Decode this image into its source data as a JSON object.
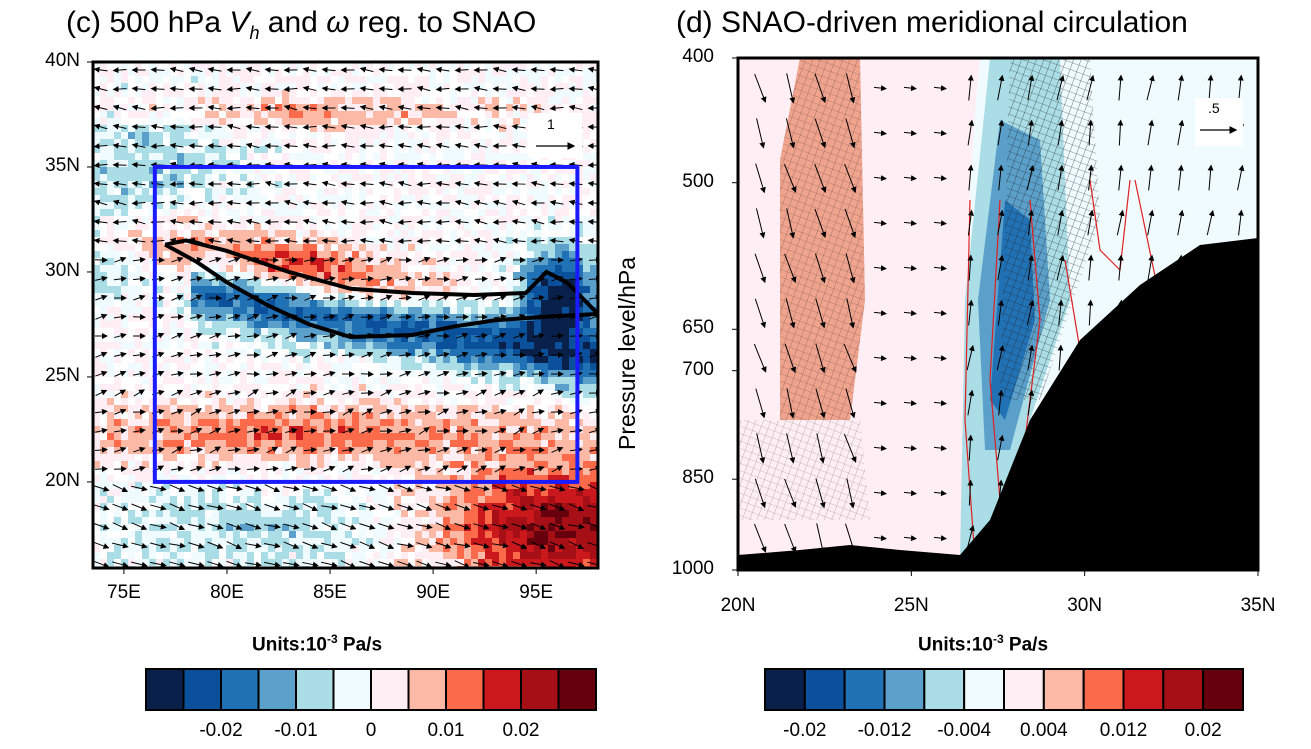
{
  "chart_data": [
    {
      "type": "heatmap",
      "panel": "(c)",
      "title": "(c) 500 hPa V_h and ω reg. to SNAO",
      "title_parts": {
        "prefix": "(c) 500 hPa ",
        "v": "V",
        "sub": "h",
        "mid": " and ",
        "omega": "ω",
        "suffix": " reg. to SNAO"
      },
      "x_ticks": [
        "75E",
        "80E",
        "85E",
        "90E",
        "95E"
      ],
      "x_tick_values": [
        75,
        80,
        85,
        90,
        95
      ],
      "y_ticks": [
        "40N",
        "35N",
        "30N",
        "25N",
        "20N"
      ],
      "y_tick_values": [
        40,
        35,
        30,
        25,
        20
      ],
      "xlim": [
        73.5,
        98
      ],
      "ylim": [
        15.9,
        40
      ],
      "reference_vector_label": "1",
      "box": {
        "lon": [
          76.5,
          97
        ],
        "lat": [
          20,
          35
        ],
        "color": "#1a1aff"
      },
      "colorbar": {
        "units_prefix": "Units:10",
        "units_exp": "-3",
        "units_suffix": " Pa/s",
        "colors": [
          "#08204a",
          "#0a509b",
          "#2171b5",
          "#5aa0cb",
          "#aadde5",
          "#f0fbff",
          "#ffeef3",
          "#fcb9a6",
          "#fb6a4a",
          "#cb181d",
          "#a50f15",
          "#67000d"
        ],
        "labels": [
          "-0.02",
          "-0.01",
          "0",
          "0.01",
          "0.02"
        ]
      }
    },
    {
      "type": "heatmap",
      "panel": "(d)",
      "title": "(d) SNAO-driven meridional circulation",
      "ylabel": "Pressure level/hPa",
      "x_ticks": [
        "20N",
        "25N",
        "30N",
        "35N"
      ],
      "x_tick_values": [
        20,
        25,
        30,
        35
      ],
      "y_ticks": [
        "400",
        "500",
        "650",
        "700",
        "850",
        "1000"
      ],
      "y_tick_values": [
        400,
        500,
        650,
        700,
        850,
        1000
      ],
      "xlim": [
        20,
        35
      ],
      "ylim": [
        1000,
        400
      ],
      "y_scale": "log",
      "reference_vector_label": ".5",
      "contour_color": "#e02020",
      "terrain_color": "#000000",
      "colorbar": {
        "units_prefix": "Units:10",
        "units_exp": "-3",
        "units_suffix": " Pa/s",
        "colors": [
          "#08204a",
          "#0a509b",
          "#2171b5",
          "#5aa0cb",
          "#aadde5",
          "#f0fbff",
          "#ffeef3",
          "#fcb9a6",
          "#fb6a4a",
          "#cb181d",
          "#a50f15",
          "#67000d"
        ],
        "labels": [
          "-0.02",
          "-0.012",
          "-0.004",
          "0.004",
          "0.012",
          "0.02"
        ]
      }
    }
  ]
}
